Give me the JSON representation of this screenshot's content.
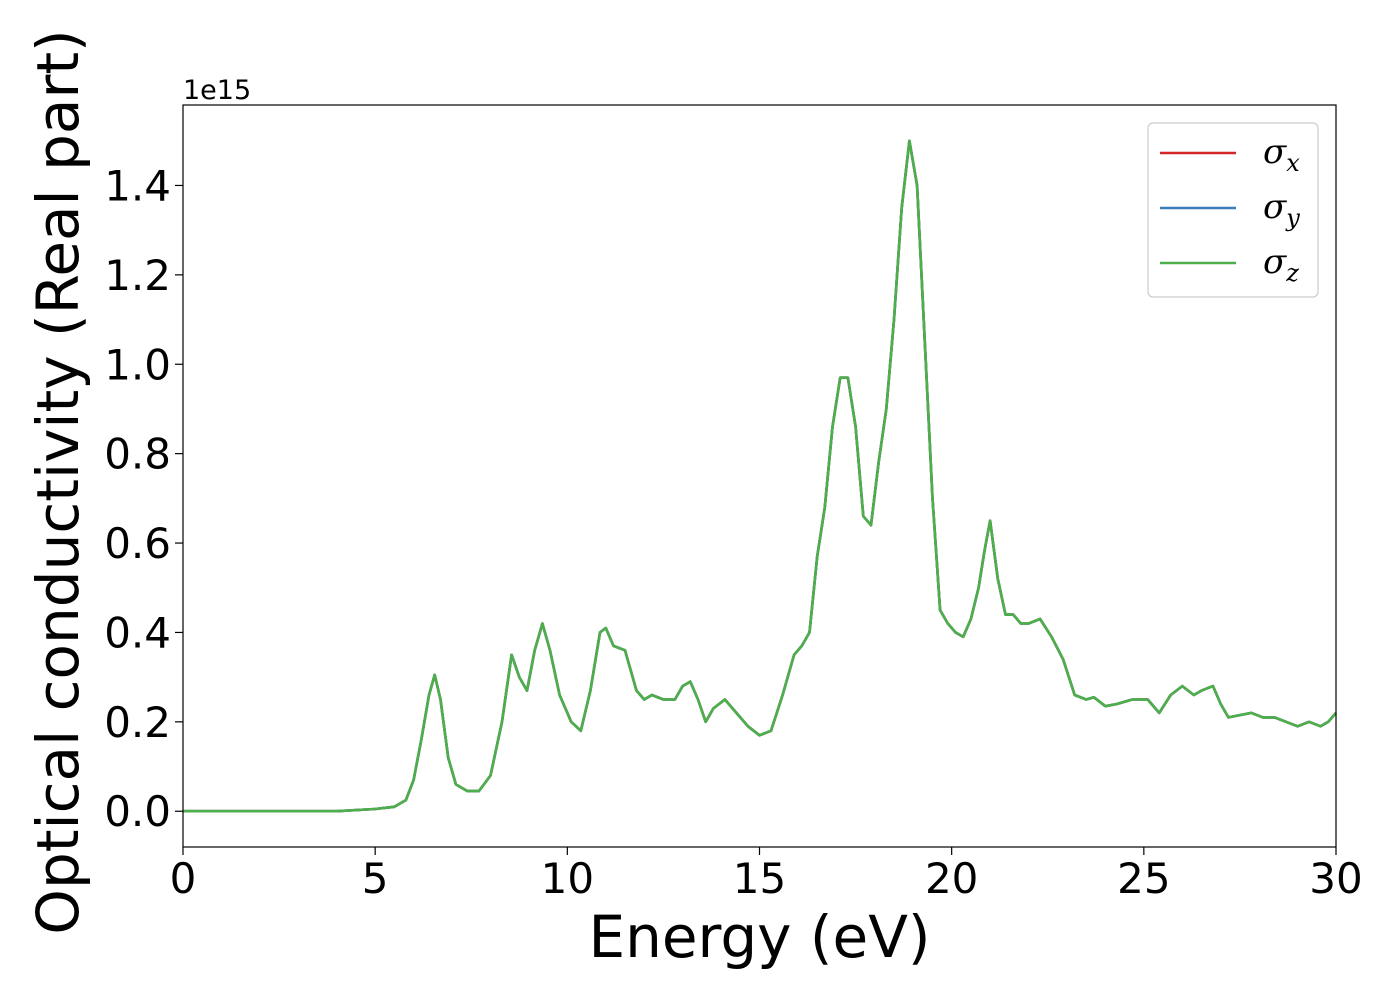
{
  "chart_data": {
    "type": "line",
    "title": "",
    "xlabel": "Energy (eV)",
    "ylabel": "Optical conductivity (Real part)",
    "y_offset_label": "1e15",
    "xlim": [
      0,
      30
    ],
    "ylim": [
      -0.08,
      1.58
    ],
    "x_ticks": [
      0,
      5,
      10,
      15,
      20,
      25,
      30
    ],
    "x_tick_labels": [
      "0",
      "5",
      "10",
      "15",
      "20",
      "25",
      "30"
    ],
    "y_ticks": [
      0.0,
      0.2,
      0.4,
      0.6,
      0.8,
      1.0,
      1.2,
      1.4
    ],
    "y_tick_labels": [
      "0.0",
      "0.2",
      "0.4",
      "0.6",
      "0.8",
      "1.0",
      "1.2",
      "1.4"
    ],
    "grid": false,
    "legend_position": "top-right",
    "legend": [
      {
        "symbol": "σ",
        "subscript": "x",
        "color": "#d62728"
      },
      {
        "symbol": "σ",
        "subscript": "y",
        "color": "#3a7dbf"
      },
      {
        "symbol": "σ",
        "subscript": "z",
        "color": "#4daf4a"
      }
    ],
    "x": [
      0,
      1,
      2,
      3,
      4,
      5,
      5.5,
      5.8,
      6.0,
      6.2,
      6.4,
      6.55,
      6.7,
      6.9,
      7.1,
      7.4,
      7.7,
      8.0,
      8.3,
      8.55,
      8.75,
      8.95,
      9.15,
      9.35,
      9.55,
      9.8,
      10.1,
      10.35,
      10.6,
      10.85,
      11.0,
      11.2,
      11.5,
      11.8,
      12.0,
      12.2,
      12.5,
      12.8,
      13.0,
      13.2,
      13.4,
      13.6,
      13.8,
      14.1,
      14.4,
      14.7,
      15.0,
      15.3,
      15.6,
      15.9,
      16.1,
      16.3,
      16.5,
      16.7,
      16.9,
      17.1,
      17.3,
      17.5,
      17.7,
      17.9,
      18.1,
      18.3,
      18.5,
      18.7,
      18.9,
      19.1,
      19.3,
      19.5,
      19.7,
      19.9,
      20.1,
      20.3,
      20.5,
      20.7,
      20.85,
      21.0,
      21.2,
      21.4,
      21.6,
      21.8,
      22.0,
      22.3,
      22.6,
      22.9,
      23.2,
      23.5,
      23.7,
      24.0,
      24.3,
      24.7,
      25.1,
      25.4,
      25.7,
      26.0,
      26.3,
      26.5,
      26.8,
      27.0,
      27.2,
      27.5,
      27.8,
      28.1,
      28.4,
      28.7,
      29.0,
      29.3,
      29.6,
      29.8,
      30.0
    ],
    "series": [
      {
        "name": "σx",
        "color": "#d62728"
      },
      {
        "name": "σy",
        "color": "#3a7dbf"
      },
      {
        "name": "σz",
        "color": "#4daf4a",
        "values": [
          0.0,
          0.0,
          0.0,
          0.0,
          0.0,
          0.005,
          0.01,
          0.025,
          0.07,
          0.16,
          0.26,
          0.305,
          0.25,
          0.12,
          0.06,
          0.045,
          0.045,
          0.08,
          0.2,
          0.35,
          0.3,
          0.27,
          0.36,
          0.42,
          0.36,
          0.26,
          0.2,
          0.18,
          0.27,
          0.4,
          0.41,
          0.37,
          0.36,
          0.27,
          0.25,
          0.26,
          0.25,
          0.25,
          0.28,
          0.29,
          0.25,
          0.2,
          0.23,
          0.25,
          0.22,
          0.19,
          0.17,
          0.18,
          0.26,
          0.35,
          0.37,
          0.4,
          0.57,
          0.68,
          0.86,
          0.97,
          0.97,
          0.86,
          0.66,
          0.64,
          0.78,
          0.9,
          1.1,
          1.35,
          1.5,
          1.4,
          1.05,
          0.7,
          0.45,
          0.42,
          0.4,
          0.39,
          0.43,
          0.5,
          0.58,
          0.65,
          0.52,
          0.44,
          0.44,
          0.42,
          0.42,
          0.43,
          0.39,
          0.34,
          0.26,
          0.25,
          0.255,
          0.235,
          0.24,
          0.25,
          0.25,
          0.22,
          0.26,
          0.28,
          0.26,
          0.27,
          0.28,
          0.24,
          0.21,
          0.215,
          0.22,
          0.21,
          0.21,
          0.2,
          0.19,
          0.2,
          0.19,
          0.2,
          0.22
        ]
      }
    ]
  }
}
